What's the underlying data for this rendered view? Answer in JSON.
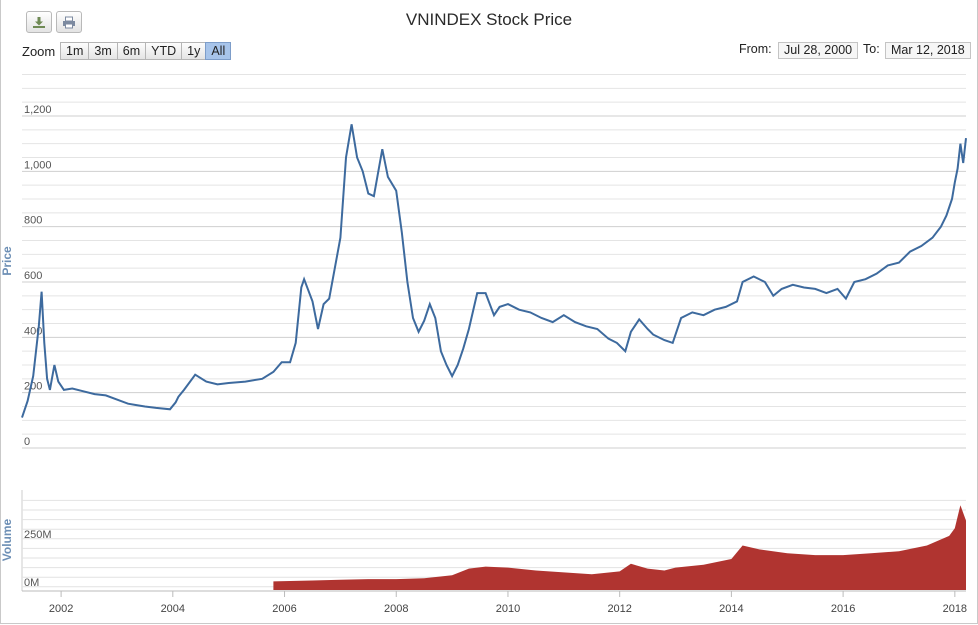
{
  "toolbar": {
    "download_icon": "download-icon",
    "print_icon": "print-icon"
  },
  "title": "VNINDEX Stock Price",
  "zoom": {
    "label": "Zoom",
    "buttons": [
      "1m",
      "3m",
      "6m",
      "YTD",
      "1y",
      "All"
    ],
    "active": "All"
  },
  "range": {
    "from_label": "From:",
    "from_value": "Jul 28, 2000",
    "to_label": "To:",
    "to_value": "Mar 12, 2018"
  },
  "colors": {
    "price_line": "#3d6a9e",
    "volume_bars": "#b03430",
    "grid": "#d8d8d8",
    "axis_title": "#6d8fb5",
    "active_button": "#a7c4ea"
  },
  "chart_data": [
    {
      "type": "line",
      "title": "VNINDEX Stock Price",
      "ylabel": "Price",
      "ylim": [
        0,
        1200
      ],
      "yticks": [
        0,
        200,
        400,
        600,
        800,
        1000,
        1200
      ],
      "ytick_labels": [
        "0",
        "200",
        "400",
        "600",
        "800",
        "1,000",
        "1,200"
      ],
      "xlim": [
        2001.3,
        2018.2
      ],
      "xticks": [
        2002,
        2004,
        2006,
        2008,
        2010,
        2012,
        2014,
        2016,
        2018
      ],
      "xtick_labels": [
        "2002",
        "2004",
        "2006",
        "2008",
        "2010",
        "2012",
        "2014",
        "2016",
        "2018"
      ],
      "grid": true,
      "series": [
        {
          "x": [
            2001.3,
            2001.4,
            2001.5,
            2001.6,
            2001.65,
            2001.7,
            2001.75,
            2001.8,
            2001.88,
            2001.95,
            2002.05,
            2002.2,
            2002.4,
            2002.6,
            2002.8,
            2003.0,
            2003.2,
            2003.35,
            2003.5,
            2003.7,
            2003.95,
            2004.05,
            2004.1,
            2004.2,
            2004.4,
            2004.6,
            2004.8,
            2005.0,
            2005.3,
            2005.6,
            2005.8,
            2005.95,
            2006.1,
            2006.2,
            2006.3,
            2006.35,
            2006.5,
            2006.6,
            2006.7,
            2006.8,
            2006.9,
            2007.0,
            2007.1,
            2007.2,
            2007.3,
            2007.4,
            2007.5,
            2007.6,
            2007.75,
            2007.85,
            2008.0,
            2008.1,
            2008.2,
            2008.3,
            2008.4,
            2008.5,
            2008.6,
            2008.7,
            2008.8,
            2008.9,
            2009.0,
            2009.1,
            2009.2,
            2009.3,
            2009.45,
            2009.6,
            2009.75,
            2009.85,
            2010.0,
            2010.2,
            2010.4,
            2010.6,
            2010.8,
            2011.0,
            2011.2,
            2011.4,
            2011.6,
            2011.8,
            2011.95,
            2012.1,
            2012.2,
            2012.35,
            2012.5,
            2012.6,
            2012.8,
            2012.95,
            2013.1,
            2013.3,
            2013.5,
            2013.7,
            2013.9,
            2014.1,
            2014.2,
            2014.4,
            2014.6,
            2014.75,
            2014.9,
            2015.1,
            2015.3,
            2015.5,
            2015.7,
            2015.9,
            2016.05,
            2016.2,
            2016.4,
            2016.6,
            2016.8,
            2017.0,
            2017.2,
            2017.4,
            2017.6,
            2017.75,
            2017.85,
            2017.95,
            2018.0,
            2018.05,
            2018.1,
            2018.15,
            2018.2
          ],
          "y": [
            110,
            170,
            260,
            440,
            565,
            380,
            250,
            210,
            300,
            240,
            210,
            215,
            205,
            195,
            190,
            175,
            160,
            155,
            150,
            145,
            140,
            165,
            185,
            210,
            265,
            240,
            230,
            235,
            240,
            250,
            275,
            310,
            310,
            380,
            580,
            610,
            530,
            430,
            520,
            540,
            650,
            760,
            1050,
            1170,
            1050,
            1000,
            920,
            910,
            1080,
            980,
            930,
            780,
            600,
            470,
            420,
            460,
            520,
            470,
            350,
            300,
            260,
            300,
            360,
            430,
            560,
            560,
            480,
            510,
            520,
            500,
            490,
            470,
            455,
            480,
            455,
            440,
            430,
            395,
            380,
            350,
            420,
            465,
            430,
            410,
            390,
            380,
            470,
            490,
            480,
            500,
            510,
            530,
            600,
            620,
            600,
            550,
            575,
            590,
            580,
            575,
            560,
            575,
            540,
            600,
            610,
            630,
            660,
            670,
            710,
            730,
            760,
            800,
            840,
            900,
            960,
            1010,
            1100,
            1030,
            1120
          ]
        }
      ]
    },
    {
      "type": "bar",
      "ylabel": "Volume",
      "ylim": [
        0,
        450000000
      ],
      "yticks": [
        0,
        250000000
      ],
      "ytick_labels": [
        "0M",
        "250M"
      ],
      "grid": true,
      "series": [
        {
          "x": [
            2005.8,
            2006.5,
            2007.0,
            2007.5,
            2008.0,
            2008.5,
            2009.0,
            2009.3,
            2009.6,
            2010.0,
            2010.5,
            2011.0,
            2011.5,
            2012.0,
            2012.2,
            2012.5,
            2012.8,
            2013.0,
            2013.5,
            2014.0,
            2014.2,
            2014.5,
            2015.0,
            2015.5,
            2016.0,
            2016.5,
            2017.0,
            2017.5,
            2017.9,
            2018.0,
            2018.1,
            2018.2
          ],
          "values": [
            3000000,
            8000000,
            12000000,
            15000000,
            15000000,
            20000000,
            35000000,
            70000000,
            80000000,
            75000000,
            60000000,
            50000000,
            40000000,
            55000000,
            95000000,
            70000000,
            60000000,
            75000000,
            90000000,
            120000000,
            190000000,
            170000000,
            150000000,
            140000000,
            140000000,
            150000000,
            160000000,
            190000000,
            240000000,
            280000000,
            400000000,
            320000000
          ]
        }
      ]
    }
  ]
}
